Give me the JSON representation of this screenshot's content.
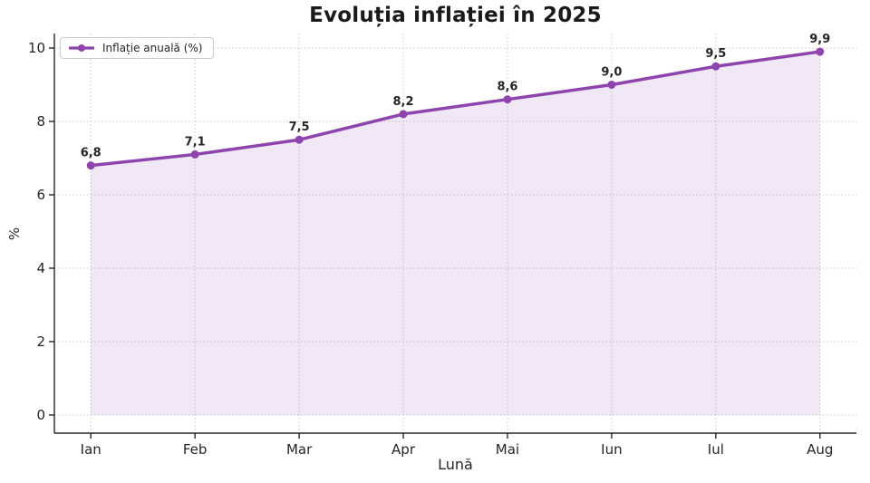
{
  "chart_data": {
    "type": "line",
    "title": "Evoluția inflației în 2025",
    "xlabel": "Lună",
    "ylabel": "%",
    "categories": [
      "Ian",
      "Feb",
      "Mar",
      "Apr",
      "Mai",
      "Iun",
      "Iul",
      "Aug"
    ],
    "series": [
      {
        "name": "Inflație anuală (%)",
        "values": [
          6.8,
          7.1,
          7.5,
          8.2,
          8.6,
          9.0,
          9.5,
          9.9
        ],
        "point_labels": [
          "6,8",
          "7,1",
          "7,5",
          "8,2",
          "8,6",
          "9,0",
          "9,5",
          "9,9"
        ],
        "marker": "circle",
        "area_fill_to_zero": true
      }
    ],
    "ytick_labels": [
      "0",
      "2",
      "4",
      "6",
      "8",
      "10"
    ],
    "ytick_values": [
      0,
      2,
      4,
      6,
      8,
      10
    ],
    "ylim": [
      -0.495,
      10.395
    ],
    "xlim": [
      -0.35,
      7.35
    ],
    "grid": "dotted-both-directions",
    "legend": {
      "position": "upper-left",
      "entries": [
        "Inflație anuală (%)"
      ]
    }
  },
  "colors": {
    "line": "#8e44ad",
    "area_fill": "rgba(142,68,173,0.12)",
    "grid": "#c9c9c9",
    "axis": "#262626",
    "tick_text": "#262626",
    "point_label_text": "#262626",
    "title_text": "#1a1a1a",
    "background": "#ffffff"
  }
}
